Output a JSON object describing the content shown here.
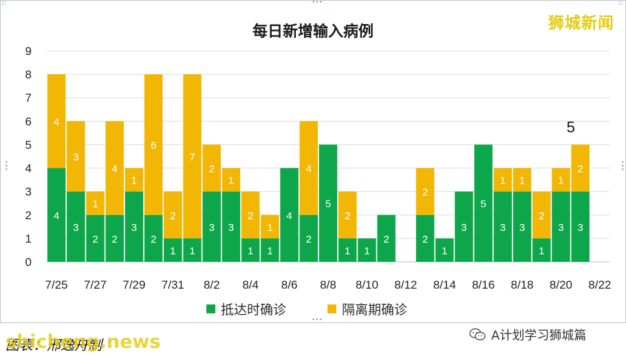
{
  "brand": "狮城新闻",
  "chart_data": {
    "type": "bar",
    "stacked": true,
    "title": "每日新增输入病例",
    "categories": [
      "7/25",
      "7/26",
      "7/27",
      "7/28",
      "7/29",
      "7/30",
      "7/31",
      "8/1",
      "8/2",
      "8/3",
      "8/4",
      "8/5",
      "8/6",
      "8/7",
      "8/8",
      "8/9",
      "8/10",
      "8/11",
      "8/12",
      "8/13",
      "8/14",
      "8/15",
      "8/16",
      "8/17",
      "8/18",
      "8/19",
      "8/20",
      "8/21"
    ],
    "x_tick_labels": [
      "7/25",
      "7/27",
      "7/29",
      "7/31",
      "8/2",
      "8/4",
      "8/6",
      "8/8",
      "8/10",
      "8/12",
      "8/14",
      "8/16",
      "8/18",
      "8/20",
      "8/22"
    ],
    "ylim": [
      0,
      9
    ],
    "y_ticks": [
      "0",
      "1",
      "2",
      "3",
      "4",
      "5",
      "6",
      "7",
      "8",
      "9"
    ],
    "series": [
      {
        "name": "抵达时确诊",
        "color": "#0ea64b",
        "values": [
          4,
          3,
          2,
          2,
          3,
          2,
          1,
          1,
          3,
          3,
          1,
          1,
          4,
          2,
          5,
          1,
          1,
          2,
          0,
          2,
          1,
          3,
          5,
          3,
          3,
          1,
          3,
          3
        ]
      },
      {
        "name": "隔离期确诊",
        "color": "#f2b705",
        "values": [
          4,
          3,
          1,
          4,
          1,
          6,
          2,
          7,
          2,
          1,
          2,
          1,
          0,
          4,
          0,
          2,
          0,
          0,
          0,
          2,
          0,
          0,
          0,
          1,
          1,
          2,
          1,
          2
        ]
      }
    ],
    "annotation": {
      "category": "8/21",
      "text": "5"
    },
    "grid": true,
    "legend_position": "bottom"
  },
  "footer": {
    "caption": "图表：邢逸舟制",
    "watermark": "shicheng.news",
    "wechat_label": "A计划学习狮城篇",
    "wechat_icon": "wechat-icon"
  }
}
